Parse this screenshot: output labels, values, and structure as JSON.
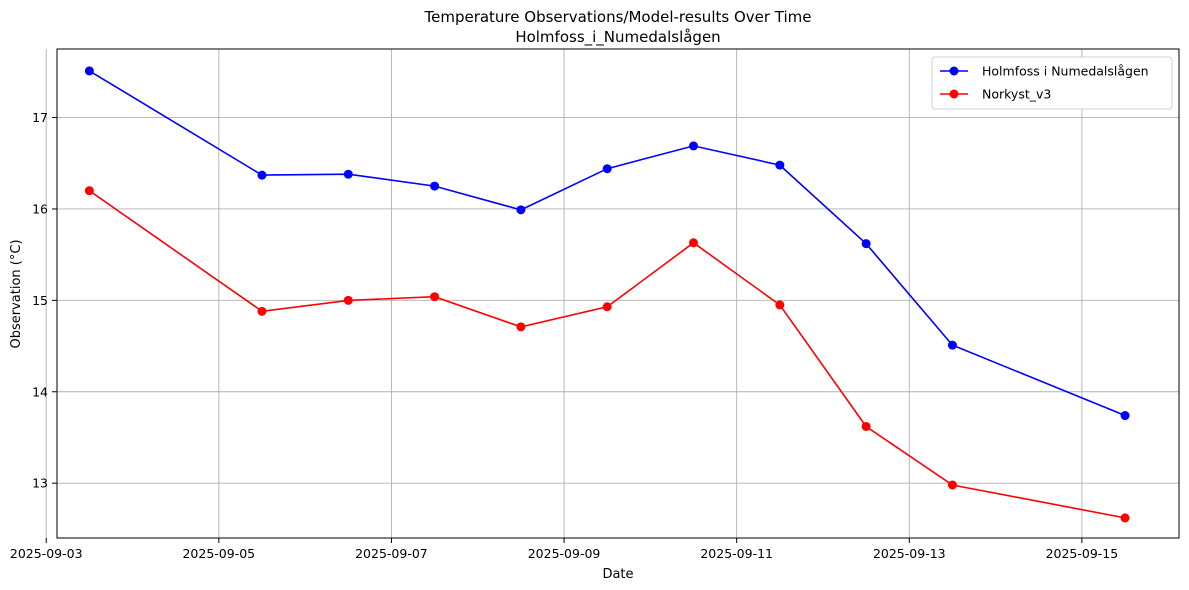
{
  "chart_data": {
    "type": "line",
    "title": "Temperature Observations/Model-results Over Time",
    "subtitle": "Holmfoss_i_Numedalslågen",
    "xlabel": "Date",
    "ylabel": "Observation (°C)",
    "grid": true,
    "legend_position": "top-right",
    "x_axis_type": "date",
    "xlim": [
      "2025-09-03 03:00",
      "2025-09-16 03:00"
    ],
    "ylim": [
      12.4,
      17.75
    ],
    "x_ticks": [
      "2025-09-03",
      "2025-09-05",
      "2025-09-07",
      "2025-09-09",
      "2025-09-11",
      "2025-09-13",
      "2025-09-15"
    ],
    "y_ticks": [
      13,
      14,
      15,
      16,
      17
    ],
    "x": [
      "2025-09-03 12:00",
      "2025-09-05 12:00",
      "2025-09-06 12:00",
      "2025-09-07 12:00",
      "2025-09-08 12:00",
      "2025-09-09 12:00",
      "2025-09-10 12:00",
      "2025-09-11 12:00",
      "2025-09-12 12:00",
      "2025-09-13 12:00",
      "2025-09-15 12:00"
    ],
    "series": [
      {
        "name": "Holmfoss i Numedalslågen",
        "color": "#0000ff",
        "values": [
          17.51,
          16.37,
          16.38,
          16.25,
          15.99,
          16.44,
          16.69,
          16.48,
          15.62,
          14.51,
          13.74
        ]
      },
      {
        "name": "Norkyst_v3",
        "color": "#ff0000",
        "values": [
          16.2,
          14.88,
          15.0,
          15.04,
          14.71,
          14.93,
          15.63,
          14.95,
          13.62,
          12.98,
          12.62
        ]
      }
    ]
  }
}
